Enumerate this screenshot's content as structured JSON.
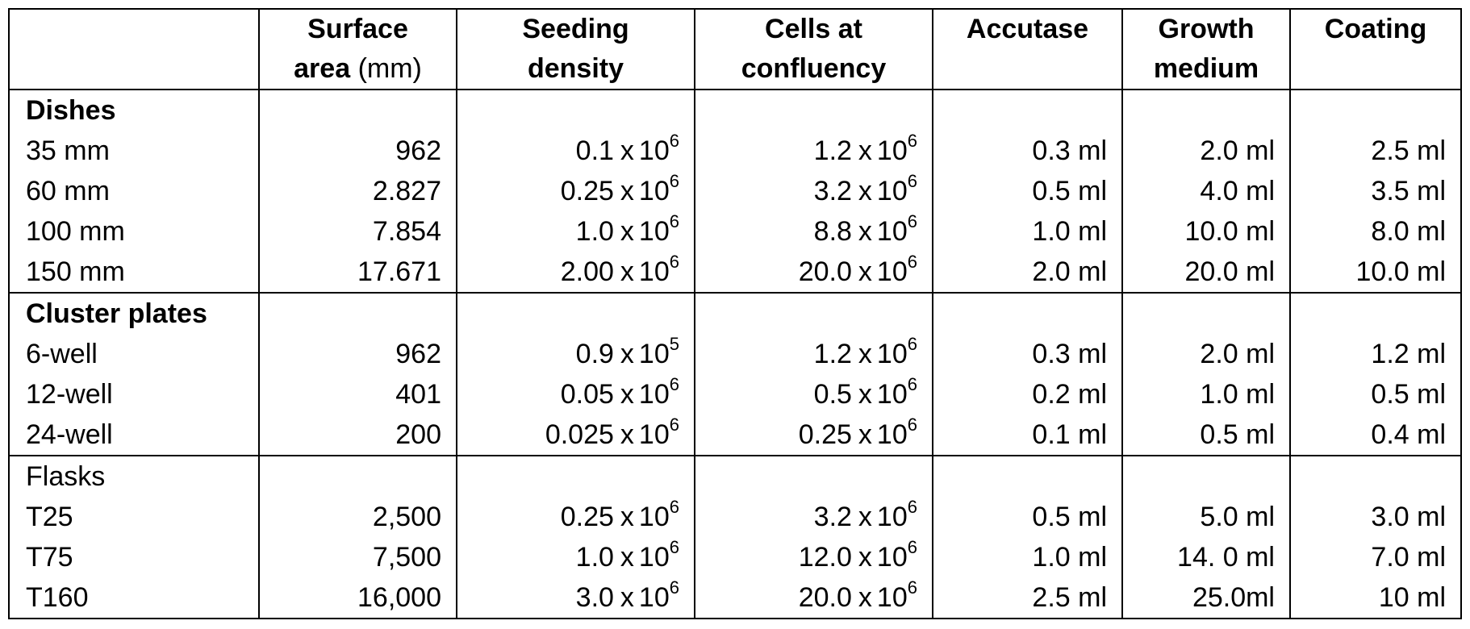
{
  "header": {
    "blank": "",
    "surface_area": "Surface",
    "surface_area_2": "area",
    "surface_area_unit": "(mm)",
    "seeding_1": "Seeding",
    "seeding_2": "density",
    "cells_1": "Cells at",
    "cells_2": "confluency",
    "accutase": "Accutase",
    "growth_1": "Growth",
    "growth_2": "medium",
    "coating": "Coating"
  },
  "groups": [
    {
      "title": "Dishes",
      "title_bold": true,
      "rows": [
        {
          "name": "35 mm",
          "area": "962",
          "seed_m": "0.1",
          "seed_e": "6",
          "conf_m": "1.2",
          "conf_e": "6",
          "accutase": "0.3 ml",
          "medium": "2.0 ml",
          "coating": "2.5 ml"
        },
        {
          "name": "60 mm",
          "area": "2.827",
          "seed_m": "0.25",
          "seed_e": "6",
          "conf_m": "3.2",
          "conf_e": "6",
          "accutase": "0.5 ml",
          "medium": "4.0 ml",
          "coating": "3.5 ml"
        },
        {
          "name": "100 mm",
          "area": "7.854",
          "seed_m": "1.0",
          "seed_e": "6",
          "conf_m": "8.8",
          "conf_e": "6",
          "accutase": "1.0 ml",
          "medium": "10.0 ml",
          "coating": "8.0 ml"
        },
        {
          "name": "150 mm",
          "area": "17.671",
          "seed_m": "2.00",
          "seed_e": "6",
          "conf_m": "20.0",
          "conf_e": "6",
          "accutase": "2.0 ml",
          "medium": "20.0 ml",
          "coating": "10.0 ml"
        }
      ]
    },
    {
      "title": "Cluster plates",
      "title_bold": true,
      "rows": [
        {
          "name": "6-well",
          "area": "962",
          "seed_m": "0.9",
          "seed_e": "5",
          "conf_m": "1.2",
          "conf_e": "6",
          "accutase": "0.3 ml",
          "medium": "2.0 ml",
          "coating": "1.2 ml"
        },
        {
          "name": "12-well",
          "area": "401",
          "seed_m": "0.05",
          "seed_e": "6",
          "conf_m": "0.5",
          "conf_e": "6",
          "accutase": "0.2 ml",
          "medium": "1.0 ml",
          "coating": "0.5 ml"
        },
        {
          "name": "24-well",
          "area": "200",
          "seed_m": "0.025",
          "seed_e": "6",
          "conf_m": "0.25",
          "conf_e": "6",
          "accutase": "0.1 ml",
          "medium": "0.5 ml",
          "coating": "0.4 ml"
        }
      ]
    },
    {
      "title": "Flasks",
      "title_bold": false,
      "rows": [
        {
          "name": "T25",
          "area": "2,500",
          "seed_m": "0.25",
          "seed_e": "6",
          "conf_m": "3.2",
          "conf_e": "6",
          "accutase": "0.5 ml",
          "medium": "5.0 ml",
          "coating": "3.0 ml"
        },
        {
          "name": "T75",
          "area": "7,500",
          "seed_m": "1.0",
          "seed_e": "6",
          "conf_m": "12.0",
          "conf_e": "6",
          "accutase": "1.0 ml",
          "medium": "14. 0 ml",
          "coating": "7.0 ml"
        },
        {
          "name": "T160",
          "area": "16,000",
          "seed_m": "3.0",
          "seed_e": "6",
          "conf_m": "20.0",
          "conf_e": "6",
          "accutase": "2.5 ml",
          "medium": "25.0ml",
          "coating": "10 ml"
        }
      ]
    }
  ],
  "sci": {
    "times": "x",
    "base": "10"
  }
}
